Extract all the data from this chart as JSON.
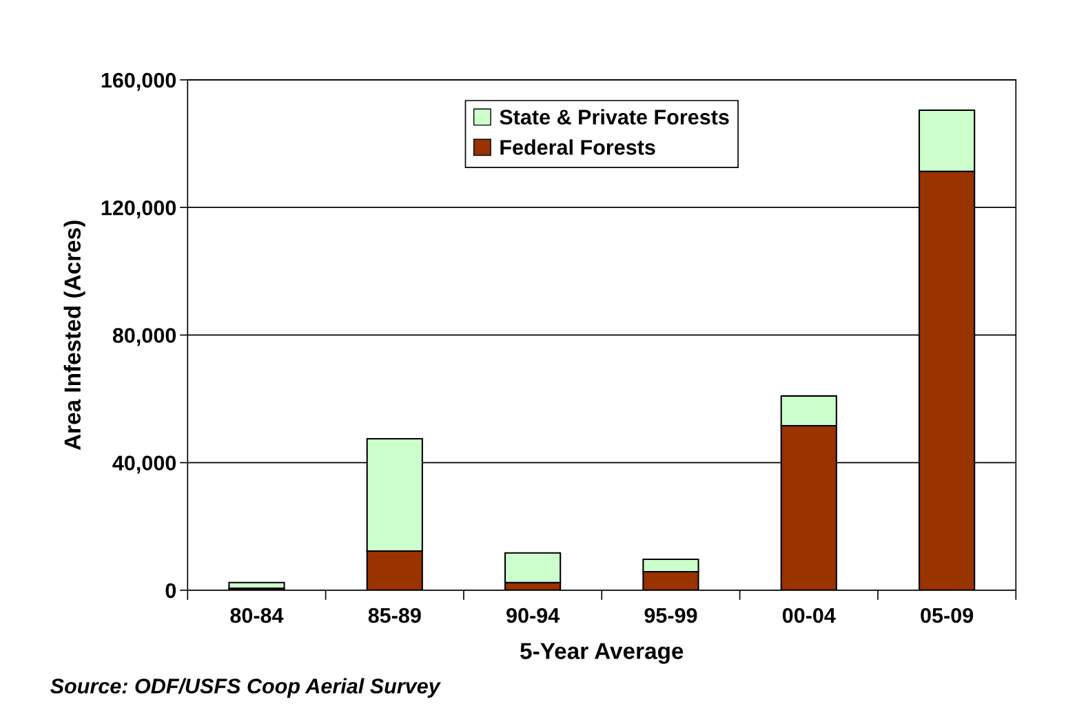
{
  "chart_data": {
    "type": "bar",
    "stacked": true,
    "xlabel": "5-Year Average",
    "ylabel": "Area Infested (Acres)",
    "categories": [
      "80-84",
      "85-89",
      "90-94",
      "95-99",
      "00-04",
      "05-09"
    ],
    "series": [
      {
        "name": "Federal Forests",
        "color": "#993300",
        "values": [
          600,
          12300,
          2400,
          5800,
          51600,
          131300
        ]
      },
      {
        "name": "State & Private Forests",
        "color": "#ccffcc",
        "values": [
          1800,
          35200,
          9300,
          3900,
          9300,
          19200
        ]
      }
    ],
    "ylim": [
      0,
      160000
    ],
    "yticks": [
      {
        "value": 0,
        "label": "0"
      },
      {
        "value": 40000,
        "label": "40,000"
      },
      {
        "value": 80000,
        "label": "80,000"
      },
      {
        "value": 120000,
        "label": "120,000"
      },
      {
        "value": 160000,
        "label": "160,000"
      }
    ],
    "grid": "y",
    "legend": "top",
    "annotations": [
      "Source: ODF/USFS Coop Aerial Survey"
    ]
  }
}
